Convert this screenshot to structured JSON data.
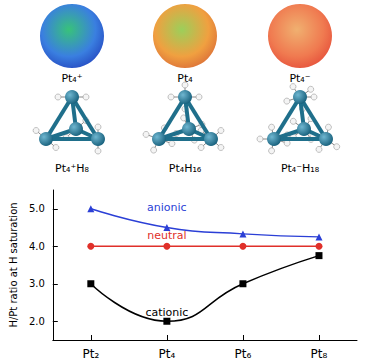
{
  "panels": {
    "surfaces": [
      "Pt₄⁺",
      "Pt₄",
      "Pt₄⁻"
    ],
    "structures": [
      "Pt₄⁺H₈",
      "Pt₄H₁₆",
      "Pt₄⁻H₁₈"
    ]
  },
  "chart_data": {
    "type": "line",
    "y_label": "H/Pt ratio at H saturation",
    "categories": [
      "Pt₂",
      "Pt₄",
      "Pt₆",
      "Pt₈"
    ],
    "series": [
      {
        "name": "anionic",
        "color": "#2b3fd6",
        "marker": "triangle",
        "line_style": "smooth",
        "values": [
          5.0,
          4.5,
          4.33,
          4.25
        ]
      },
      {
        "name": "neutral",
        "color": "#e0302a",
        "marker": "circle",
        "line_style": "smooth",
        "values": [
          4.0,
          4.0,
          4.0,
          4.0
        ]
      },
      {
        "name": "cationic",
        "color": "#000000",
        "marker": "square",
        "line_style": "smooth",
        "values": [
          3.0,
          2.0,
          3.0,
          3.75
        ]
      }
    ],
    "ylim": [
      1.5,
      5.5
    ],
    "yticks": [
      {
        "value": 2,
        "label": "2.0"
      },
      {
        "value": 3,
        "label": "3.0"
      },
      {
        "value": 4,
        "label": "4.0"
      },
      {
        "value": 5,
        "label": "5.0"
      }
    ],
    "grid": false
  }
}
